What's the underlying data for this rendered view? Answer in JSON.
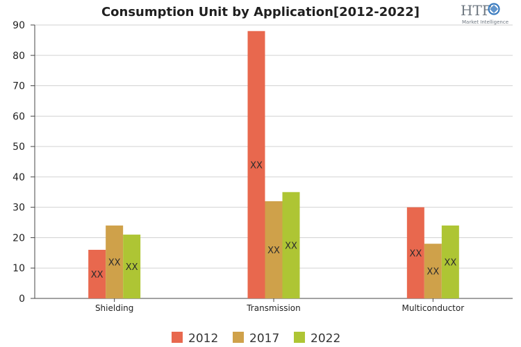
{
  "chart_data": {
    "type": "bar",
    "title": "Consumption Unit by  Application[2012-2022]",
    "categories": [
      "Shielding",
      "Transmission",
      "Multiconductor"
    ],
    "series": [
      {
        "name": "2012",
        "values": [
          16,
          88,
          30
        ],
        "color": "#e8684e"
      },
      {
        "name": "2017",
        "values": [
          24,
          32,
          18
        ],
        "color": "#cfa14a"
      },
      {
        "name": "2022",
        "values": [
          21,
          35,
          24
        ],
        "color": "#aec534"
      }
    ],
    "data_label": "XX",
    "ylim": [
      0,
      90
    ],
    "yticks": [
      0,
      10,
      20,
      30,
      40,
      50,
      60,
      70,
      80,
      90
    ],
    "grid": true,
    "legend": "bottom",
    "xlabel": "",
    "ylabel": ""
  },
  "logo": {
    "main": "HTF",
    "sub": "Market Intelligence",
    "accent": "#3a7bbf"
  }
}
